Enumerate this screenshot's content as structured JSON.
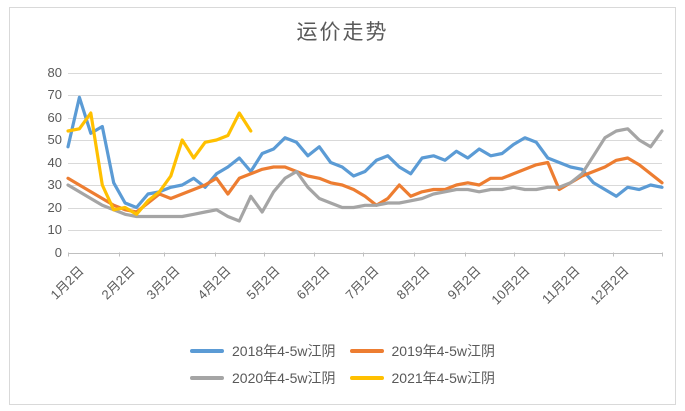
{
  "window": {
    "background": "#ffffff",
    "frame_border_color": "#d9d9d9"
  },
  "chart_data": {
    "type": "line",
    "title": "运价走势",
    "xlabel": "",
    "ylabel": "",
    "ylim": [
      0,
      80
    ],
    "grid": "horizontal",
    "gridline_color": "#d9d9d9",
    "axis_line_color": "#bfbfbf",
    "axis_text_color": "#595959",
    "y_axis": {
      "ticks": [
        0,
        10,
        20,
        30,
        40,
        50,
        60,
        70,
        80
      ]
    },
    "x_axis": {
      "tick_labels": [
        "1月2日",
        "2月2日",
        "3月2日",
        "4月2日",
        "5月2日",
        "6月2日",
        "7月2日",
        "8月2日",
        "9月2日",
        "10月2日",
        "11月2日",
        "12月2日"
      ],
      "tick_days": [
        0,
        31,
        59,
        90,
        120,
        151,
        181,
        212,
        243,
        273,
        304,
        334
      ],
      "days_total": 364
    },
    "sample_interval_days": 7,
    "series": [
      {
        "name": "2018年4-5w江阴",
        "color": "#5B9BD5",
        "values": [
          47,
          69,
          53,
          56,
          31,
          22,
          20,
          26,
          27,
          29,
          30,
          33,
          29,
          35,
          38,
          42,
          36,
          44,
          46,
          51,
          49,
          43,
          47,
          40,
          38,
          34,
          36,
          41,
          43,
          38,
          35,
          42,
          43,
          41,
          45,
          42,
          46,
          43,
          44,
          48,
          51,
          49,
          42,
          40,
          38,
          37,
          31,
          28,
          25,
          29,
          28,
          30,
          29
        ]
      },
      {
        "name": "2019年4-5w江阴",
        "color": "#ED7D31",
        "values": [
          33,
          30,
          27,
          24,
          21,
          19,
          18,
          22,
          26,
          24,
          26,
          28,
          30,
          33,
          26,
          33,
          35,
          37,
          38,
          38,
          36,
          34,
          33,
          31,
          30,
          28,
          25,
          21,
          24,
          30,
          25,
          27,
          28,
          28,
          30,
          31,
          30,
          33,
          33,
          35,
          37,
          39,
          40,
          28,
          31,
          34,
          36,
          38,
          41,
          42,
          39,
          35,
          31
        ]
      },
      {
        "name": "2020年4-5w江阴",
        "color": "#A5A5A5",
        "values": [
          30,
          27,
          24,
          21,
          19,
          17,
          16,
          16,
          16,
          16,
          16,
          17,
          18,
          19,
          16,
          14,
          25,
          18,
          27,
          33,
          36,
          29,
          24,
          22,
          20,
          20,
          21,
          21,
          22,
          22,
          23,
          24,
          26,
          27,
          28,
          28,
          27,
          28,
          28,
          29,
          28,
          28,
          29,
          29,
          31,
          35,
          43,
          51,
          54,
          55,
          50,
          47,
          54
        ]
      },
      {
        "name": "2021年4-5w江阴",
        "color": "#FFC000",
        "values": [
          54,
          55,
          62,
          30,
          19,
          20,
          17,
          23,
          27,
          34,
          50,
          42,
          49,
          50,
          52,
          62,
          54
        ]
      }
    ],
    "legend": {
      "position": "bottom",
      "rows": [
        [
          "2018年4-5w江阴",
          "2019年4-5w江阴"
        ],
        [
          "2020年4-5w江阴",
          "2021年4-5w江阴"
        ]
      ]
    }
  }
}
